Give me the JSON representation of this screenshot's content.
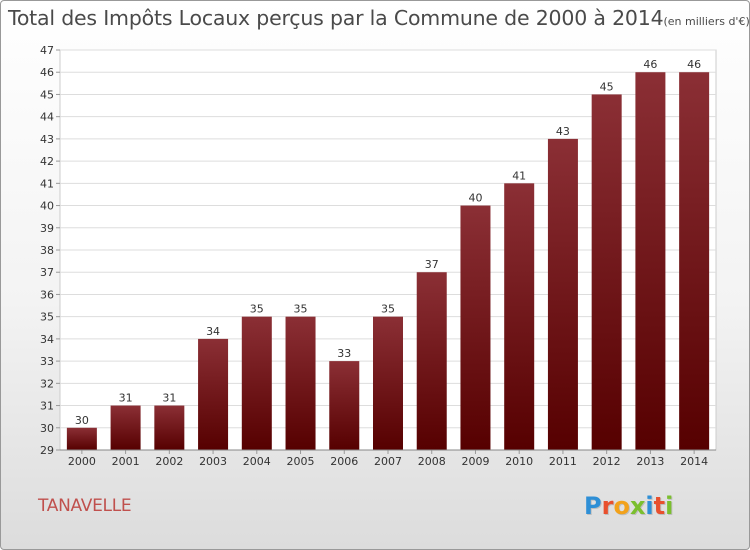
{
  "title": "Total des Impôts Locaux perçus par la Commune de 2000 à 2014",
  "unit": "(en milliers d'€)",
  "commune": "TANAVELLE",
  "logo": {
    "text": "Proxiti",
    "letters": [
      {
        "ch": "P",
        "color": "#2e8fd6"
      },
      {
        "ch": "r",
        "color": "#e8502e"
      },
      {
        "ch": "o",
        "color": "#f2a21b"
      },
      {
        "ch": "x",
        "color": "#7bbf2e"
      },
      {
        "ch": "i",
        "color": "#2e8fd6"
      },
      {
        "ch": "t",
        "color": "#e8502e"
      },
      {
        "ch": "i",
        "color": "#7bbf2e"
      }
    ]
  },
  "colors": {
    "bar_top": "#8b2f35",
    "bar_bottom": "#560000",
    "commune_text": "#c0504d"
  },
  "chart_data": {
    "type": "bar",
    "categories": [
      "2000",
      "2001",
      "2002",
      "2003",
      "2004",
      "2005",
      "2006",
      "2007",
      "2008",
      "2009",
      "2010",
      "2011",
      "2012",
      "2013",
      "2014"
    ],
    "values": [
      30,
      31,
      31,
      34,
      35,
      35,
      33,
      35,
      37,
      40,
      41,
      43,
      45,
      46,
      46
    ],
    "ylim": [
      29,
      47
    ],
    "yticks": [
      29,
      30,
      31,
      32,
      33,
      34,
      35,
      36,
      37,
      38,
      39,
      40,
      41,
      42,
      43,
      44,
      45,
      46,
      47
    ],
    "grid": true,
    "data_labels": true
  }
}
